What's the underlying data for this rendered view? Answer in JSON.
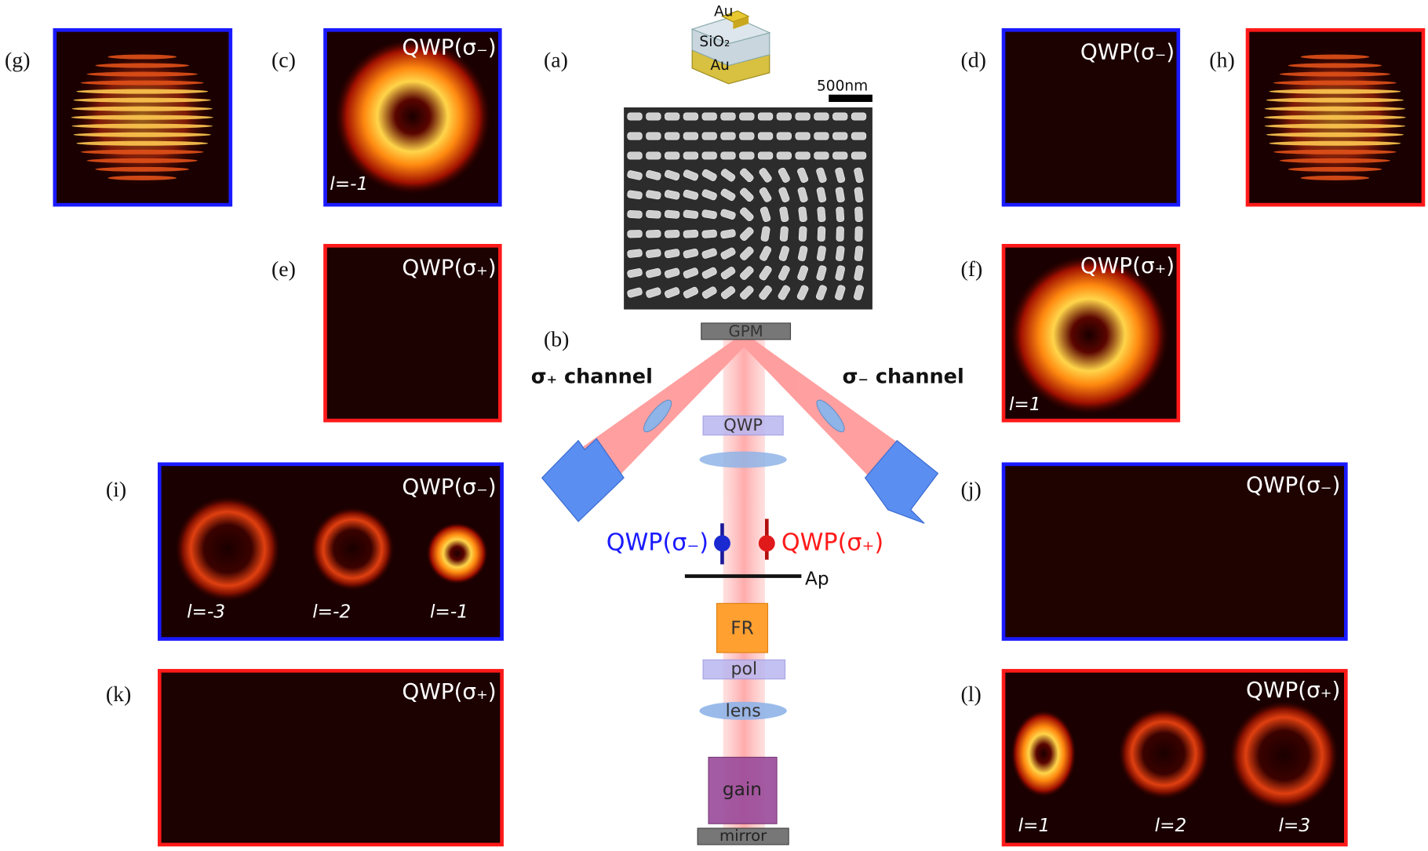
{
  "panels": {
    "g": {
      "label": "(g)"
    },
    "c": {
      "label": "(c)",
      "title": "QWP(σ₋)",
      "modes": [
        "l=-1"
      ]
    },
    "a": {
      "label": "(a)",
      "layers": [
        "Au",
        "SiO₂",
        "Au"
      ],
      "scale_bar": "500nm"
    },
    "d": {
      "label": "(d)",
      "title": "QWP(σ₋)"
    },
    "h": {
      "label": "(h)"
    },
    "e": {
      "label": "(e)",
      "title": "QWP(σ₊)"
    },
    "f": {
      "label": "(f)",
      "title": "QWP(σ₊)",
      "modes": [
        "l=1"
      ]
    },
    "i": {
      "label": "(i)",
      "title": "QWP(σ₋)",
      "modes": [
        "l=-3",
        "l=-2",
        "l=-1"
      ]
    },
    "j": {
      "label": "(j)",
      "title": "QWP(σ₋)"
    },
    "k": {
      "label": "(k)",
      "title": "QWP(σ₊)"
    },
    "l": {
      "label": "(l)",
      "title": "QWP(σ₊)",
      "modes": [
        "l=1",
        "l=2",
        "l=3"
      ]
    }
  },
  "setup": {
    "label": "(b)",
    "gpm": "GPM",
    "plus_channel": "σ₊ channel",
    "minus_channel": "σ₋ channel",
    "qwp": "QWP",
    "state_minus": "QWP(σ₋)",
    "state_plus": "QWP(σ₊)",
    "aperture": "Ap",
    "rotator": "FR",
    "polarizer": "pol",
    "lens": "lens",
    "gain": "gain",
    "mirror": "mirror"
  }
}
